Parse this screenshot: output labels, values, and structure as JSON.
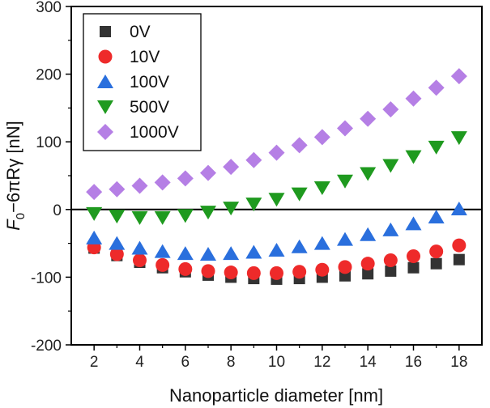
{
  "chart_data": {
    "type": "scatter",
    "xlabel": "Nanoparticle diameter [nm]",
    "ylabel": {
      "main": "F",
      "sub": "0",
      "rest": "−6πRγ [nN]"
    },
    "xlim": [
      1,
      19
    ],
    "ylim": [
      -200,
      300
    ],
    "xticks": [
      2,
      4,
      6,
      8,
      10,
      12,
      14,
      16,
      18
    ],
    "yticks": [
      -200,
      -100,
      0,
      100,
      200,
      300
    ],
    "grid": false,
    "zero_line": true,
    "legend_position": "top-left",
    "x": [
      2,
      3,
      4,
      5,
      6,
      7,
      8,
      9,
      10,
      11,
      12,
      13,
      14,
      15,
      16,
      17,
      18
    ],
    "series": [
      {
        "name": "0V",
        "marker": "square",
        "color": "#333333",
        "values": [
          -57,
          -68,
          -78,
          -86,
          -92,
          -97,
          -100,
          -102,
          -103,
          -102,
          -100,
          -98,
          -95,
          -91,
          -86,
          -80,
          -74
        ]
      },
      {
        "name": "10V",
        "marker": "circle",
        "color": "#ee2a2a",
        "values": [
          -56,
          -66,
          -75,
          -82,
          -88,
          -91,
          -93,
          -94,
          -94,
          -92,
          -89,
          -85,
          -80,
          -75,
          -69,
          -62,
          -53
        ]
      },
      {
        "name": "100V",
        "marker": "triangle-up",
        "color": "#2a6fdd",
        "values": [
          -42,
          -50,
          -57,
          -62,
          -65,
          -66,
          -65,
          -63,
          -60,
          -55,
          -50,
          -44,
          -37,
          -30,
          -21,
          -11,
          1
        ]
      },
      {
        "name": "500V",
        "marker": "triangle-down",
        "color": "#1f9a1f",
        "values": [
          -6,
          -10,
          -12,
          -12,
          -9,
          -4,
          2,
          8,
          15,
          23,
          32,
          42,
          53,
          65,
          78,
          92,
          106
        ]
      },
      {
        "name": "1000V",
        "marker": "diamond",
        "color": "#b57fe5",
        "values": [
          26,
          30,
          35,
          40,
          46,
          54,
          63,
          73,
          84,
          95,
          107,
          120,
          134,
          148,
          164,
          180,
          197
        ]
      }
    ]
  }
}
